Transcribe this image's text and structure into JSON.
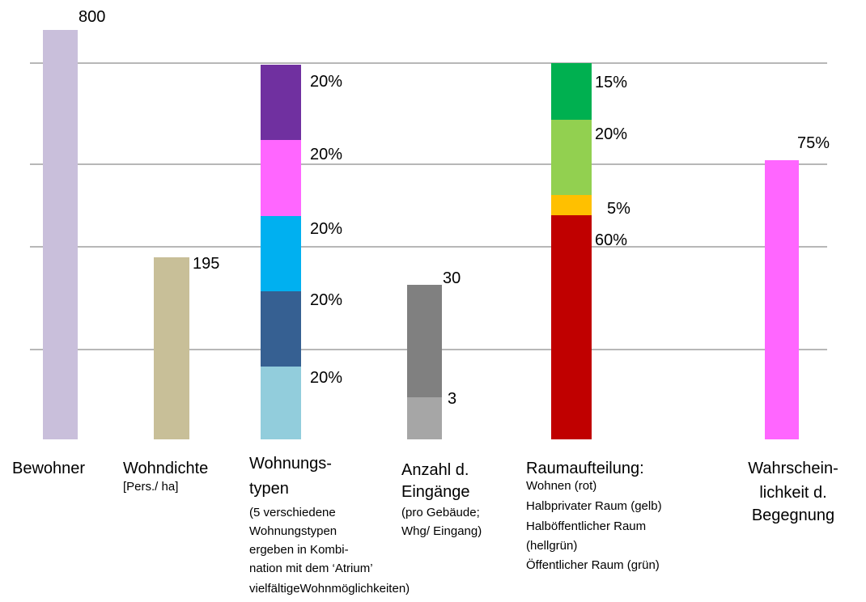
{
  "columns": [
    {
      "title": [
        "Bewohner"
      ],
      "notes": [],
      "labels": [
        "800"
      ]
    },
    {
      "title": [
        "Wohndichte"
      ],
      "notes": [
        "[Pers./ ha]"
      ],
      "labels": [
        "195"
      ]
    },
    {
      "title": [
        "Wohnungs-",
        "typen"
      ],
      "notes": [
        "(5 verschiedene",
        "Wohnungstypen",
        "ergeben in Kombi-",
        "nation mit dem ‘Atrium’",
        "vielfältigeWohnmöglichkeiten)"
      ],
      "labels": [
        "20%",
        "20%",
        "20%",
        "20%",
        "20%"
      ]
    },
    {
      "title": [
        "Anzahl d.",
        "Eingänge"
      ],
      "notes": [
        "(pro Gebäude;",
        "Whg/ Eingang)"
      ],
      "labels": [
        "30",
        "3"
      ]
    },
    {
      "title": [
        "Raumaufteilung:"
      ],
      "notes": [
        "Wohnen (rot)",
        "Halbprivater Raum (gelb)",
        "Halböffentlicher Raum",
        "(hellgrün)",
        "Öffentlicher Raum (grün)"
      ],
      "labels": [
        "15%",
        "20%",
        "5%",
        "60%"
      ]
    },
    {
      "title": [
        "Wahrschein-",
        "lichkeit d.",
        "Begegnung"
      ],
      "notes": [],
      "labels": [
        "75%"
      ]
    }
  ]
}
